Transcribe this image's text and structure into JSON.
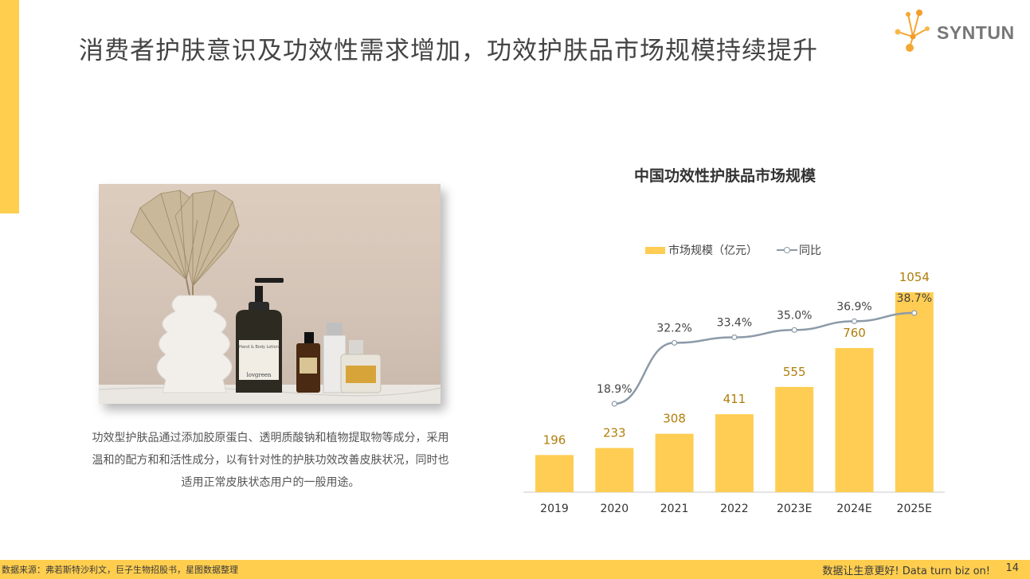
{
  "header": {
    "title": "消费者护肤意识及功效性需求增加，功效护肤品市场规模持续提升",
    "logo_text": "SYNTUN"
  },
  "caption": "功效型护肤品通过添加胶原蛋白、透明质酸钠和植物提取物等成分，采用温和的配方和和活性成分，以有针对性的护肤功效改善皮肤状况，同时也适用正常皮肤状态用户的一般用途。",
  "photo": {
    "bottle_label": "Hand & Body Lotion",
    "bottle_brand": "lovgreen"
  },
  "chart_data": {
    "type": "bar",
    "title": "中国功效性护肤品市场规模",
    "categories": [
      "2019",
      "2020",
      "2021",
      "2022",
      "2023E",
      "2024E",
      "2025E"
    ],
    "series": [
      {
        "name": "市场规模（亿元）",
        "type": "bar",
        "values": [
          196,
          233,
          308,
          411,
          555,
          760,
          1054
        ],
        "labels": [
          "196",
          "233",
          "308",
          "411",
          "555",
          "760",
          "1054"
        ],
        "color": "#ffcd53",
        "label_color": "#b07e0a"
      },
      {
        "name": "同比",
        "type": "line",
        "values": [
          null,
          18.9,
          32.2,
          33.4,
          35.0,
          36.9,
          38.7
        ],
        "labels": [
          "",
          "18.9%",
          "32.2%",
          "33.4%",
          "35.0%",
          "36.9%",
          "38.7%"
        ],
        "color": "#8c9aa8"
      }
    ],
    "ylim": [
      0,
      1054
    ],
    "grid": false,
    "legend": "top-center"
  },
  "footer": {
    "source": "数据来源：弗若斯特沙利文，巨子生物招股书，星图数据整理",
    "slogan": "数据让生意更好! Data turn biz on!",
    "page": "14"
  },
  "colors": {
    "accent": "#ffce4f",
    "bar": "#ffcd53",
    "line": "#8c9aa8"
  }
}
